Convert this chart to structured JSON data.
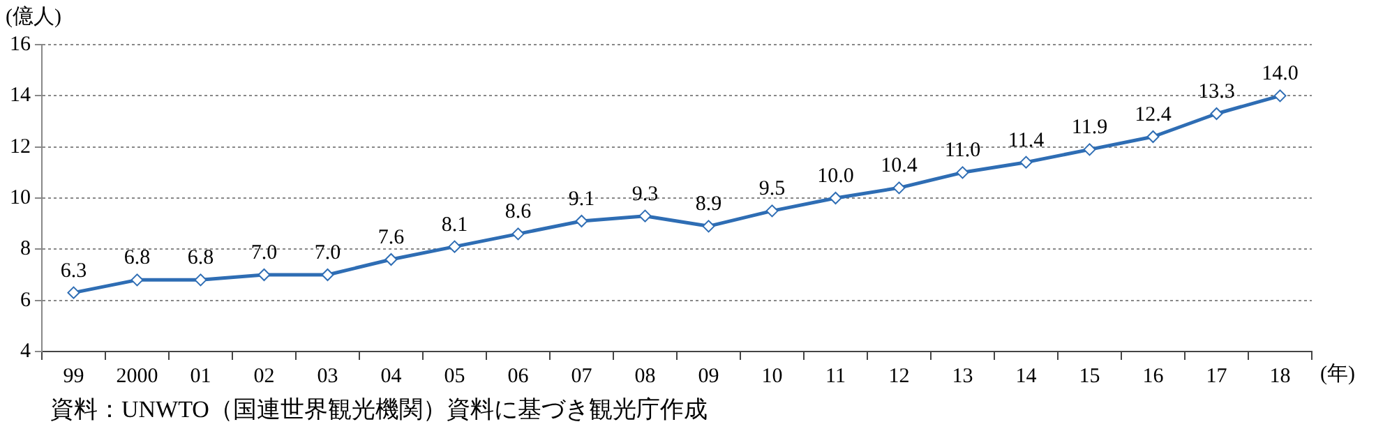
{
  "chart_data": {
    "type": "line",
    "ylabel": "(億人)",
    "xlabel": "(年)",
    "categories": [
      "99",
      "2000",
      "01",
      "02",
      "03",
      "04",
      "05",
      "06",
      "07",
      "08",
      "09",
      "10",
      "11",
      "12",
      "13",
      "14",
      "15",
      "16",
      "17",
      "18"
    ],
    "series": [
      {
        "color": "#2e6db4",
        "values": [
          6.3,
          6.8,
          6.8,
          7.0,
          7.0,
          7.6,
          8.1,
          8.6,
          9.1,
          9.3,
          8.9,
          9.5,
          10.0,
          10.4,
          11.0,
          11.4,
          11.9,
          12.4,
          13.3,
          14.0
        ],
        "value_labels": [
          "6.3",
          "6.8",
          "6.8",
          "7.0",
          "7.0",
          "7.6",
          "8.1",
          "8.6",
          "9.1",
          "9.3",
          "8.9",
          "9.5",
          "10.0",
          "10.4",
          "11.0",
          "11.4",
          "11.9",
          "12.4",
          "13.3",
          "14.0"
        ]
      }
    ],
    "ylim": [
      4,
      16
    ],
    "yticks": [
      4,
      6,
      8,
      10,
      12,
      14,
      16
    ],
    "grid": "y",
    "marker": "diamond",
    "line_style": "solid",
    "legend": false,
    "annotations": [
      "資料：UNWTO（国連世界観光機関）資料に基づき観光庁作成"
    ]
  }
}
